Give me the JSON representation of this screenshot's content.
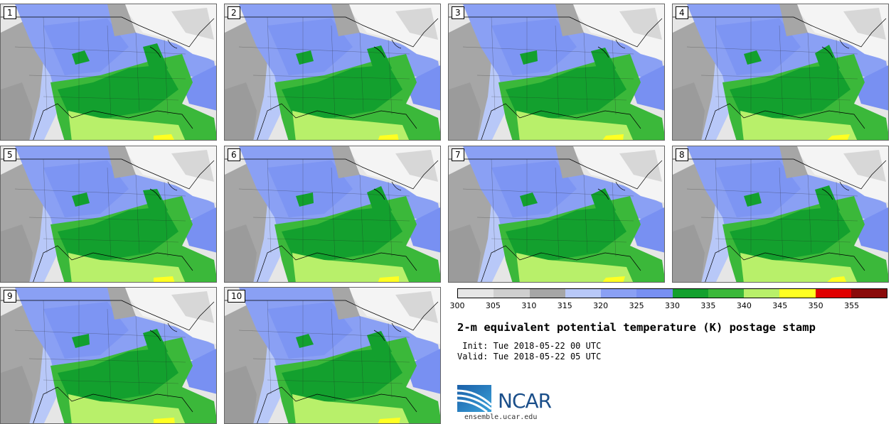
{
  "panels": [
    {
      "label": "1"
    },
    {
      "label": "2"
    },
    {
      "label": "3"
    },
    {
      "label": "4"
    },
    {
      "label": "5"
    },
    {
      "label": "6"
    },
    {
      "label": "7"
    },
    {
      "label": "8"
    },
    {
      "label": "9"
    },
    {
      "label": "10"
    }
  ],
  "colorbar": {
    "colors": [
      "#e6e6e6",
      "#cfcfcf",
      "#a6a6a6",
      "#b8c8f8",
      "#8aa0f4",
      "#7890f2",
      "#13a02e",
      "#3bb83a",
      "#b8f06a",
      "#ffff22",
      "#e00000",
      "#8a0a0a"
    ],
    "ticks": [
      "300",
      "305",
      "310",
      "315",
      "320",
      "325",
      "330",
      "335",
      "340",
      "345",
      "350",
      "355"
    ]
  },
  "title": "2-m equivalent potential temperature (K) postage stamp",
  "init": " Init: Tue 2018-05-22 00 UTC",
  "valid": "Valid: Tue 2018-05-22 05 UTC",
  "logo": {
    "name": "NCAR",
    "url": "ensemble.ucar.edu"
  }
}
